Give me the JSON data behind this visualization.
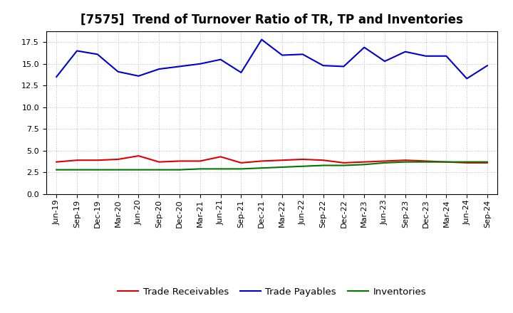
{
  "title": "[7575]  Trend of Turnover Ratio of TR, TP and Inventories",
  "labels": [
    "Jun-19",
    "Sep-19",
    "Dec-19",
    "Mar-20",
    "Jun-20",
    "Sep-20",
    "Dec-20",
    "Mar-21",
    "Jun-21",
    "Sep-21",
    "Dec-21",
    "Mar-22",
    "Jun-22",
    "Sep-22",
    "Dec-22",
    "Mar-23",
    "Jun-23",
    "Sep-23",
    "Dec-23",
    "Mar-24",
    "Jun-24",
    "Sep-24"
  ],
  "trade_receivables": [
    3.7,
    3.9,
    3.9,
    4.0,
    4.4,
    3.7,
    3.8,
    3.8,
    4.3,
    3.6,
    3.8,
    3.9,
    4.0,
    3.9,
    3.6,
    3.7,
    3.8,
    3.9,
    3.8,
    3.7,
    3.6,
    3.6
  ],
  "trade_payables": [
    13.5,
    16.5,
    16.1,
    14.1,
    13.6,
    14.4,
    14.7,
    15.0,
    15.5,
    14.0,
    17.8,
    16.0,
    16.1,
    14.8,
    14.7,
    16.9,
    15.3,
    16.4,
    15.9,
    15.9,
    13.3,
    14.8
  ],
  "inventories": [
    2.8,
    2.8,
    2.8,
    2.8,
    2.8,
    2.8,
    2.8,
    2.9,
    2.9,
    2.9,
    3.0,
    3.1,
    3.2,
    3.3,
    3.3,
    3.4,
    3.6,
    3.7,
    3.7,
    3.7,
    3.7,
    3.7
  ],
  "color_tr": "#dd0000",
  "color_tp": "#0000cc",
  "color_inv": "#007700",
  "ylim": [
    0.0,
    18.75
  ],
  "yticks": [
    0.0,
    2.5,
    5.0,
    7.5,
    10.0,
    12.5,
    15.0,
    17.5
  ],
  "background_color": "#ffffff",
  "grid_color": "#bbbbbb",
  "title_fontsize": 12,
  "legend_fontsize": 9.5,
  "tick_fontsize": 8
}
